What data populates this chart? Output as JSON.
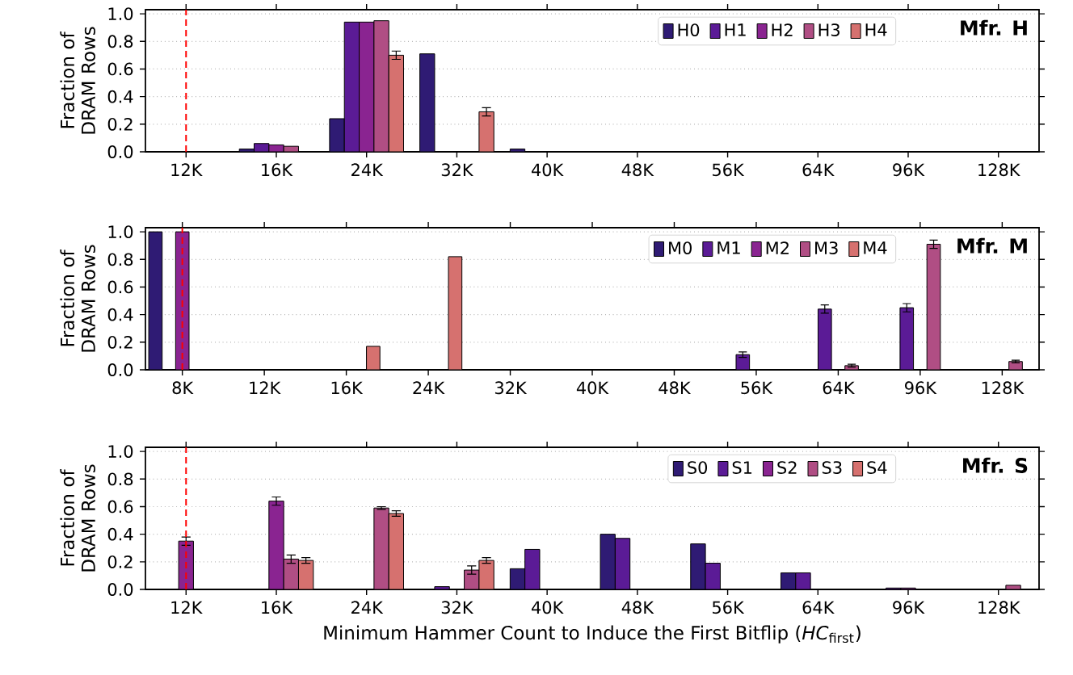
{
  "chart_data": [
    {
      "type": "bar",
      "title": "Mfr. H",
      "ylabel": "Fraction of DRAM Rows",
      "categories": [
        "12K",
        "16K",
        "24K",
        "32K",
        "40K",
        "48K",
        "56K",
        "64K",
        "96K",
        "128K"
      ],
      "series": [
        {
          "name": "H0",
          "color": "#2f1b74",
          "values": [
            null,
            0.02,
            0.24,
            0.71,
            0.02,
            null,
            null,
            null,
            null,
            null
          ]
        },
        {
          "name": "H1",
          "color": "#5b1b96",
          "values": [
            null,
            0.06,
            0.94,
            null,
            null,
            null,
            null,
            null,
            null,
            null
          ]
        },
        {
          "name": "H2",
          "color": "#8a2491",
          "values": [
            null,
            0.05,
            0.94,
            null,
            null,
            null,
            null,
            null,
            null,
            null
          ]
        },
        {
          "name": "H3",
          "color": "#b04e84",
          "values": [
            null,
            0.04,
            0.95,
            null,
            null,
            null,
            null,
            null,
            null,
            null
          ]
        },
        {
          "name": "H4",
          "color": "#d6716f",
          "values": [
            null,
            null,
            0.7,
            0.29,
            null,
            null,
            null,
            null,
            null,
            null
          ],
          "errors": [
            null,
            null,
            0.03,
            0.03,
            null,
            null,
            null,
            null,
            null,
            null
          ]
        }
      ],
      "ylim": [
        0,
        1.03
      ],
      "yticks": [
        {
          "value": 0,
          "label": "0.0"
        },
        {
          "value": 0.2,
          "label": "0.2"
        },
        {
          "value": 0.4,
          "label": "0.4"
        },
        {
          "value": 0.6,
          "label": "0.6"
        },
        {
          "value": 0.8,
          "label": "0.8"
        },
        {
          "value": 1.0,
          "label": "1.0"
        }
      ],
      "grid": "y",
      "legend": "top right",
      "ref_lines": [
        {
          "axis": "x",
          "value": "12K",
          "color": "#ff0000",
          "line_style": "dashed"
        }
      ]
    },
    {
      "type": "bar",
      "title": "Mfr. M",
      "ylabel": "Fraction of DRAM Rows",
      "categories": [
        "8K",
        "12K",
        "16K",
        "24K",
        "32K",
        "40K",
        "48K",
        "56K",
        "64K",
        "96K",
        "128K"
      ],
      "series": [
        {
          "name": "M0",
          "color": "#2f1b74",
          "values": [
            1.0,
            null,
            null,
            null,
            null,
            null,
            null,
            null,
            null,
            null,
            null
          ]
        },
        {
          "name": "M1",
          "color": "#5b1b96",
          "values": [
            null,
            null,
            null,
            null,
            null,
            null,
            null,
            0.11,
            0.44,
            0.45,
            null
          ],
          "errors": [
            null,
            null,
            null,
            null,
            null,
            null,
            null,
            0.02,
            0.03,
            0.03,
            null
          ]
        },
        {
          "name": "M2",
          "color": "#8a2491",
          "values": [
            1.0,
            null,
            null,
            null,
            null,
            null,
            null,
            null,
            null,
            null,
            null
          ]
        },
        {
          "name": "M3",
          "color": "#b04e84",
          "values": [
            null,
            null,
            null,
            null,
            null,
            null,
            null,
            null,
            0.03,
            0.91,
            0.06
          ],
          "errors": [
            null,
            null,
            null,
            null,
            null,
            null,
            null,
            null,
            0.01,
            0.03,
            0.01
          ]
        },
        {
          "name": "M4",
          "color": "#d6716f",
          "values": [
            null,
            null,
            0.17,
            0.82,
            null,
            null,
            null,
            null,
            null,
            null,
            null
          ]
        }
      ],
      "ylim": [
        0,
        1.03
      ],
      "yticks": [
        {
          "value": 0,
          "label": "0.0"
        },
        {
          "value": 0.2,
          "label": "0.2"
        },
        {
          "value": 0.4,
          "label": "0.4"
        },
        {
          "value": 0.6,
          "label": "0.6"
        },
        {
          "value": 0.8,
          "label": "0.8"
        },
        {
          "value": 1.0,
          "label": "1.0"
        }
      ],
      "grid": "y",
      "legend": "top right",
      "ref_lines": [
        {
          "axis": "x",
          "value": "8K",
          "color": "#ff0000",
          "line_style": "dashed"
        }
      ]
    },
    {
      "type": "bar",
      "title": "Mfr. S",
      "ylabel": "Fraction of DRAM Rows",
      "xlabel": "Minimum Hammer Count to Induce the First Bitflip (*HC*$_{first}$)",
      "categories": [
        "12K",
        "16K",
        "24K",
        "32K",
        "40K",
        "48K",
        "56K",
        "64K",
        "96K",
        "128K"
      ],
      "series": [
        {
          "name": "S0",
          "color": "#2f1b74",
          "values": [
            null,
            null,
            null,
            null,
            0.15,
            0.4,
            0.33,
            0.12,
            null,
            null
          ]
        },
        {
          "name": "S1",
          "color": "#5b1b96",
          "values": [
            null,
            null,
            null,
            0.02,
            0.29,
            0.37,
            0.19,
            0.12,
            0.01,
            null
          ]
        },
        {
          "name": "S2",
          "color": "#8a2491",
          "values": [
            0.35,
            0.64,
            null,
            null,
            null,
            null,
            null,
            null,
            0.01,
            null
          ],
          "errors": [
            0.03,
            0.03,
            null,
            null,
            null,
            null,
            null,
            null,
            null,
            null
          ]
        },
        {
          "name": "S3",
          "color": "#b04e84",
          "values": [
            null,
            0.22,
            0.59,
            0.14,
            null,
            null,
            null,
            null,
            null,
            0.03
          ],
          "errors": [
            null,
            0.03,
            0.01,
            0.03,
            null,
            null,
            null,
            null,
            null,
            null
          ]
        },
        {
          "name": "S4",
          "color": "#d6716f",
          "values": [
            null,
            0.21,
            0.55,
            0.21,
            null,
            null,
            null,
            null,
            null,
            null
          ],
          "errors": [
            null,
            0.02,
            0.02,
            0.02,
            null,
            null,
            null,
            null,
            null,
            null
          ]
        }
      ],
      "ylim": [
        0,
        1.03
      ],
      "yticks": [
        {
          "value": 0,
          "label": "0.0"
        },
        {
          "value": 0.2,
          "label": "0.2"
        },
        {
          "value": 0.4,
          "label": "0.4"
        },
        {
          "value": 0.6,
          "label": "0.6"
        },
        {
          "value": 0.8,
          "label": "0.8"
        },
        {
          "value": 1.0,
          "label": "1.0"
        }
      ],
      "grid": "y",
      "legend": "top right",
      "ref_lines": [
        {
          "axis": "x",
          "value": "12K",
          "color": "#ff0000",
          "line_style": "dashed"
        }
      ]
    }
  ]
}
